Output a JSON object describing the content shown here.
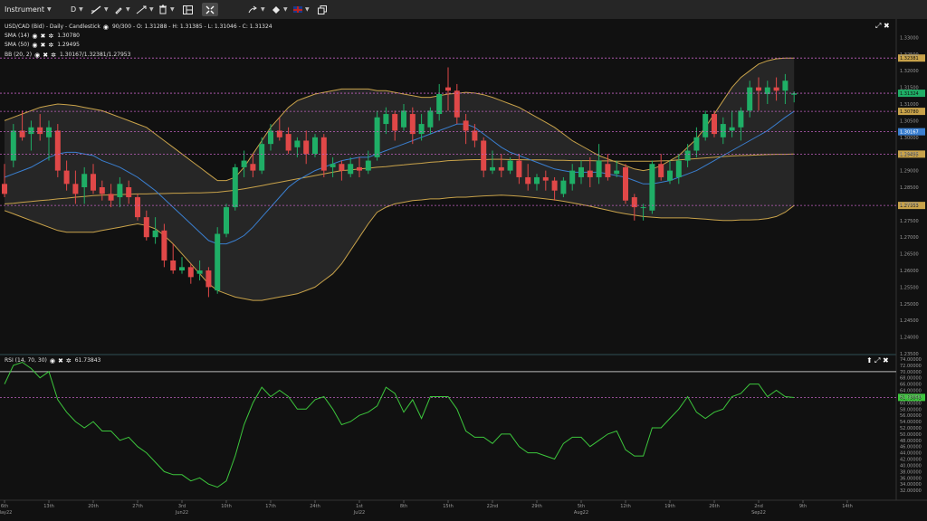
{
  "toolbar": {
    "instrument_label": "Instrument",
    "timeframe_label": "D",
    "icons": [
      "line-tool-icon",
      "pencil-icon",
      "arrows-icon",
      "delete-icon",
      "layout-icon",
      "grid-icon",
      "arrow-icon",
      "paint-icon",
      "language-flag-icon",
      "copy-icon"
    ]
  },
  "main_legend": {
    "title": "USD/CAD (Bid) - Daily - Candlestick",
    "ohlc": "90/300 - O: 1.31288 - H: 1.31385 - L: 1.31046 - C: 1.31324",
    "sma14_label": "SMA (14)",
    "sma14_value": "1.30780",
    "sma50_label": "SMA (50)",
    "sma50_value": "1.29495",
    "bb_label": "BB (20, 2)",
    "bb_value": "1.30167/1.32381/1.27953"
  },
  "rsi_legend": {
    "label": "RSI (14, 70, 30)",
    "value": "61.73843"
  },
  "colors": {
    "background": "#111111",
    "bull": "#1fae66",
    "bear": "#e04848",
    "sma14": "#3a7fd0",
    "sma50": "#c8a24a",
    "bollinger": "#c8a24a",
    "rsi": "#3cc63c",
    "level_line": "#c060c0",
    "grid": "#2a2a2a"
  },
  "chart_data": [
    {
      "type": "candlestick",
      "title": "USD/CAD (Bid) - Daily - Candlestick",
      "ylim": [
        1.235,
        1.335
      ],
      "y_ticks": [
        "1.33000",
        "1.32500",
        "1.32000",
        "1.31500",
        "1.31000",
        "1.30500",
        "1.30000",
        "1.29500",
        "1.29000",
        "1.28500",
        "1.28000",
        "1.27500",
        "1.27000",
        "1.26500",
        "1.26000",
        "1.25500",
        "1.25000",
        "1.24500",
        "1.24000",
        "1.23500"
      ],
      "x_ticks": [
        {
          "label": "6th",
          "sub": "May22",
          "i": 0
        },
        {
          "label": "13th",
          "i": 5
        },
        {
          "label": "20th",
          "i": 10
        },
        {
          "label": "27th",
          "i": 15
        },
        {
          "label": "3rd",
          "sub": "Jun22",
          "i": 20
        },
        {
          "label": "10th",
          "i": 25
        },
        {
          "label": "17th",
          "i": 30
        },
        {
          "label": "24th",
          "i": 35
        },
        {
          "label": "1st",
          "sub": "Jul22",
          "i": 40
        },
        {
          "label": "8th",
          "i": 45
        },
        {
          "label": "15th",
          "i": 50
        },
        {
          "label": "22nd",
          "i": 55
        },
        {
          "label": "29th",
          "i": 60
        },
        {
          "label": "5th",
          "sub": "Aug22",
          "i": 65
        },
        {
          "label": "12th",
          "i": 70
        },
        {
          "label": "19th",
          "i": 75
        },
        {
          "label": "26th",
          "i": 80
        },
        {
          "label": "2nd",
          "sub": "Sep22",
          "i": 85
        },
        {
          "label": "9th",
          "i": 90
        },
        {
          "label": "14th",
          "i": 95
        }
      ],
      "level_labels": [
        {
          "value": 1.32381,
          "text": "1.32381",
          "color": "#c8a24a"
        },
        {
          "value": 1.31324,
          "text": "1.31324",
          "color": "#1fae66"
        },
        {
          "value": 1.3078,
          "text": "1.30780",
          "color": "#c8a24a"
        },
        {
          "value": 1.30167,
          "text": "1.30167",
          "color": "#3a7fd0"
        },
        {
          "value": 1.29495,
          "text": "1.29495",
          "color": "#c8a24a"
        },
        {
          "value": 1.27953,
          "text": "1.27953",
          "color": "#c8a24a"
        }
      ],
      "candles": [
        [
          1.286,
          1.292,
          1.282,
          1.283
        ],
        [
          1.293,
          1.304,
          1.291,
          1.302
        ],
        [
          1.302,
          1.308,
          1.299,
          1.3
        ],
        [
          1.301,
          1.305,
          1.296,
          1.303
        ],
        [
          1.303,
          1.307,
          1.299,
          1.301
        ],
        [
          1.3,
          1.305,
          1.293,
          1.303
        ],
        [
          1.302,
          1.304,
          1.288,
          1.29
        ],
        [
          1.29,
          1.293,
          1.284,
          1.286
        ],
        [
          1.286,
          1.29,
          1.28,
          1.283
        ],
        [
          1.285,
          1.291,
          1.28,
          1.289
        ],
        [
          1.289,
          1.292,
          1.283,
          1.284
        ],
        [
          1.285,
          1.287,
          1.281,
          1.283
        ],
        [
          1.283,
          1.286,
          1.279,
          1.281
        ],
        [
          1.282,
          1.288,
          1.279,
          1.286
        ],
        [
          1.285,
          1.287,
          1.28,
          1.282
        ],
        [
          1.282,
          1.283,
          1.275,
          1.276
        ],
        [
          1.276,
          1.278,
          1.269,
          1.27
        ],
        [
          1.27,
          1.276,
          1.268,
          1.272
        ],
        [
          1.272,
          1.274,
          1.261,
          1.263
        ],
        [
          1.263,
          1.268,
          1.259,
          1.26
        ],
        [
          1.26,
          1.264,
          1.259,
          1.261
        ],
        [
          1.261,
          1.262,
          1.256,
          1.258
        ],
        [
          1.259,
          1.263,
          1.257,
          1.26
        ],
        [
          1.26,
          1.261,
          1.252,
          1.255
        ],
        [
          1.254,
          1.273,
          1.253,
          1.271
        ],
        [
          1.271,
          1.28,
          1.27,
          1.279
        ],
        [
          1.279,
          1.292,
          1.278,
          1.291
        ],
        [
          1.291,
          1.296,
          1.288,
          1.293
        ],
        [
          1.292,
          1.295,
          1.288,
          1.29
        ],
        [
          1.29,
          1.3,
          1.289,
          1.298
        ],
        [
          1.298,
          1.304,
          1.296,
          1.302
        ],
        [
          1.302,
          1.306,
          1.299,
          1.3
        ],
        [
          1.301,
          1.303,
          1.295,
          1.296
        ],
        [
          1.297,
          1.3,
          1.294,
          1.299
        ],
        [
          1.299,
          1.302,
          1.292,
          1.295
        ],
        [
          1.295,
          1.301,
          1.294,
          1.3
        ],
        [
          1.3,
          1.301,
          1.288,
          1.29
        ],
        [
          1.291,
          1.294,
          1.288,
          1.292
        ],
        [
          1.292,
          1.293,
          1.287,
          1.29
        ],
        [
          1.289,
          1.294,
          1.288,
          1.292
        ],
        [
          1.291,
          1.294,
          1.288,
          1.29
        ],
        [
          1.29,
          1.296,
          1.289,
          1.293
        ],
        [
          1.294,
          1.308,
          1.293,
          1.306
        ],
        [
          1.304,
          1.309,
          1.301,
          1.307
        ],
        [
          1.307,
          1.308,
          1.299,
          1.302
        ],
        [
          1.303,
          1.31,
          1.302,
          1.308
        ],
        [
          1.307,
          1.309,
          1.298,
          1.301
        ],
        [
          1.301,
          1.307,
          1.299,
          1.304
        ],
        [
          1.303,
          1.309,
          1.301,
          1.308
        ],
        [
          1.307,
          1.316,
          1.305,
          1.313
        ],
        [
          1.315,
          1.321,
          1.308,
          1.314
        ],
        [
          1.314,
          1.316,
          1.304,
          1.306
        ],
        [
          1.305,
          1.307,
          1.298,
          1.302
        ],
        [
          1.302,
          1.304,
          1.297,
          1.299
        ],
        [
          1.299,
          1.3,
          1.288,
          1.29
        ],
        [
          1.29,
          1.296,
          1.289,
          1.291
        ],
        [
          1.291,
          1.295,
          1.288,
          1.29
        ],
        [
          1.29,
          1.294,
          1.289,
          1.293
        ],
        [
          1.293,
          1.295,
          1.286,
          1.288
        ],
        [
          1.288,
          1.292,
          1.284,
          1.286
        ],
        [
          1.286,
          1.289,
          1.284,
          1.288
        ],
        [
          1.288,
          1.29,
          1.284,
          1.287
        ],
        [
          1.287,
          1.288,
          1.281,
          1.284
        ],
        [
          1.283,
          1.288,
          1.282,
          1.287
        ],
        [
          1.286,
          1.292,
          1.284,
          1.29
        ],
        [
          1.288,
          1.293,
          1.286,
          1.291
        ],
        [
          1.29,
          1.294,
          1.285,
          1.288
        ],
        [
          1.288,
          1.298,
          1.286,
          1.293
        ],
        [
          1.292,
          1.295,
          1.287,
          1.288
        ],
        [
          1.289,
          1.293,
          1.288,
          1.29
        ],
        [
          1.291,
          1.292,
          1.28,
          1.281
        ],
        [
          1.282,
          1.283,
          1.275,
          1.279
        ],
        [
          1.279,
          1.28,
          1.275,
          1.279
        ],
        [
          1.278,
          1.293,
          1.277,
          1.292
        ],
        [
          1.292,
          1.295,
          1.287,
          1.288
        ],
        [
          1.287,
          1.293,
          1.286,
          1.29
        ],
        [
          1.288,
          1.295,
          1.286,
          1.293
        ],
        [
          1.293,
          1.298,
          1.291,
          1.296
        ],
        [
          1.296,
          1.303,
          1.294,
          1.3
        ],
        [
          1.3,
          1.308,
          1.299,
          1.307
        ],
        [
          1.307,
          1.308,
          1.3,
          1.301
        ],
        [
          1.3,
          1.306,
          1.298,
          1.304
        ],
        [
          1.302,
          1.308,
          1.3,
          1.303
        ],
        [
          1.303,
          1.309,
          1.299,
          1.308
        ],
        [
          1.308,
          1.317,
          1.306,
          1.315
        ],
        [
          1.315,
          1.318,
          1.308,
          1.314
        ],
        [
          1.313,
          1.317,
          1.31,
          1.315
        ],
        [
          1.315,
          1.318,
          1.311,
          1.314
        ],
        [
          1.314,
          1.319,
          1.31,
          1.317
        ],
        [
          1.3128,
          1.3138,
          1.3105,
          1.3132
        ]
      ],
      "sma14": [
        1.288,
        1.289,
        1.29,
        1.291,
        1.2925,
        1.294,
        1.295,
        1.2955,
        1.2955,
        1.295,
        1.2945,
        1.293,
        1.292,
        1.291,
        1.2895,
        1.288,
        1.286,
        1.284,
        1.2815,
        1.279,
        1.2765,
        1.274,
        1.2715,
        1.269,
        1.268,
        1.268,
        1.269,
        1.2705,
        1.273,
        1.276,
        1.279,
        1.282,
        1.285,
        1.287,
        1.2885,
        1.29,
        1.291,
        1.292,
        1.293,
        1.2935,
        1.294,
        1.294,
        1.295,
        1.296,
        1.297,
        1.298,
        1.299,
        1.3,
        1.301,
        1.302,
        1.303,
        1.304,
        1.304,
        1.303,
        1.301,
        1.299,
        1.297,
        1.2955,
        1.2945,
        1.2935,
        1.2925,
        1.2915,
        1.2905,
        1.29,
        1.2895,
        1.2895,
        1.2895,
        1.2895,
        1.289,
        1.2885,
        1.288,
        1.287,
        1.286,
        1.286,
        1.2865,
        1.287,
        1.288,
        1.289,
        1.29,
        1.2915,
        1.293,
        1.2945,
        1.296,
        1.2975,
        1.299,
        1.3005,
        1.302,
        1.304,
        1.306,
        1.3078
      ],
      "sma50": [
        1.28,
        1.2802,
        1.2805,
        1.2807,
        1.281,
        1.2812,
        1.2815,
        1.2817,
        1.282,
        1.2822,
        1.2825,
        1.2826,
        1.2827,
        1.2828,
        1.2829,
        1.283,
        1.283,
        1.2831,
        1.2831,
        1.2832,
        1.2832,
        1.2833,
        1.2833,
        1.2834,
        1.2835,
        1.2838,
        1.2841,
        1.2845,
        1.285,
        1.2855,
        1.286,
        1.2865,
        1.287,
        1.2875,
        1.288,
        1.2885,
        1.289,
        1.2895,
        1.29,
        1.2902,
        1.2905,
        1.2907,
        1.291,
        1.2912,
        1.2915,
        1.2917,
        1.292,
        1.2922,
        1.2925,
        1.2927,
        1.293,
        1.2931,
        1.2932,
        1.2933,
        1.2933,
        1.2934,
        1.2934,
        1.2933,
        1.2933,
        1.2932,
        1.2932,
        1.2932,
        1.2931,
        1.2931,
        1.293,
        1.293,
        1.293,
        1.2929,
        1.2929,
        1.2928,
        1.2928,
        1.2928,
        1.2928,
        1.2928,
        1.2929,
        1.293,
        1.2932,
        1.2934,
        1.2936,
        1.2938,
        1.294,
        1.2942,
        1.2944,
        1.2945,
        1.2946,
        1.2947,
        1.2948,
        1.2949,
        1.2949,
        1.295
      ],
      "bb_upper": [
        1.305,
        1.306,
        1.307,
        1.308,
        1.309,
        1.3095,
        1.31,
        1.3098,
        1.3095,
        1.309,
        1.3085,
        1.308,
        1.307,
        1.306,
        1.305,
        1.304,
        1.303,
        1.301,
        1.299,
        1.297,
        1.295,
        1.293,
        1.291,
        1.289,
        1.287,
        1.287,
        1.288,
        1.291,
        1.295,
        1.299,
        1.303,
        1.306,
        1.309,
        1.311,
        1.312,
        1.313,
        1.3135,
        1.314,
        1.3145,
        1.3145,
        1.3145,
        1.3145,
        1.314,
        1.314,
        1.3135,
        1.313,
        1.3125,
        1.312,
        1.312,
        1.3125,
        1.313,
        1.3132,
        1.3135,
        1.3133,
        1.3128,
        1.312,
        1.311,
        1.31,
        1.309,
        1.3075,
        1.306,
        1.3045,
        1.303,
        1.301,
        1.299,
        1.2975,
        1.296,
        1.2945,
        1.2935,
        1.2925,
        1.2915,
        1.2905,
        1.29,
        1.2905,
        1.2915,
        1.293,
        1.2945,
        1.297,
        1.2995,
        1.303,
        1.307,
        1.311,
        1.315,
        1.318,
        1.32,
        1.322,
        1.323,
        1.3236,
        1.3238,
        1.3238
      ],
      "bb_lower": [
        1.278,
        1.277,
        1.276,
        1.275,
        1.274,
        1.273,
        1.272,
        1.2715,
        1.2715,
        1.2715,
        1.2715,
        1.272,
        1.2725,
        1.273,
        1.2735,
        1.274,
        1.2735,
        1.2725,
        1.2705,
        1.268,
        1.265,
        1.262,
        1.259,
        1.256,
        1.254,
        1.253,
        1.252,
        1.2515,
        1.251,
        1.251,
        1.2515,
        1.252,
        1.2525,
        1.253,
        1.254,
        1.255,
        1.257,
        1.259,
        1.262,
        1.266,
        1.27,
        1.274,
        1.2775,
        1.279,
        1.28,
        1.2805,
        1.281,
        1.2812,
        1.2815,
        1.2815,
        1.2818,
        1.282,
        1.282,
        1.2822,
        1.2824,
        1.2825,
        1.2826,
        1.2825,
        1.2823,
        1.2821,
        1.2818,
        1.2815,
        1.2812,
        1.2808,
        1.2803,
        1.2798,
        1.2793,
        1.2787,
        1.2781,
        1.2775,
        1.277,
        1.2766,
        1.2762,
        1.276,
        1.2758,
        1.2758,
        1.2758,
        1.2758,
        1.2756,
        1.2754,
        1.2752,
        1.275,
        1.275,
        1.2752,
        1.2752,
        1.2753,
        1.2756,
        1.2762,
        1.2775,
        1.2795
      ]
    },
    {
      "type": "line",
      "title": "RSI (14, 70, 30)",
      "ylim": [
        30,
        74
      ],
      "y_ticks": [
        "74.00000",
        "72.00000",
        "70.00000",
        "68.00000",
        "66.00000",
        "64.00000",
        "62.00000",
        "60.00000",
        "58.00000",
        "56.00000",
        "54.00000",
        "52.00000",
        "50.00000",
        "48.00000",
        "46.00000",
        "44.00000",
        "42.00000",
        "40.00000",
        "38.00000",
        "36.00000",
        "34.00000",
        "32.00000"
      ],
      "overbought": 70,
      "value_label": {
        "value": 61.73843,
        "text": "61.73843"
      },
      "series": [
        {
          "values": [
            66,
            72,
            73,
            71,
            68,
            70,
            61,
            57,
            54,
            52,
            54,
            51,
            51,
            48,
            49,
            46,
            44,
            41,
            38,
            37,
            37,
            35,
            36,
            34,
            33,
            35,
            43,
            53,
            60,
            65,
            62,
            64,
            62,
            58,
            58,
            61,
            62,
            58,
            53,
            54,
            56,
            57,
            59,
            65,
            63,
            57,
            61,
            55,
            62,
            62,
            62,
            58,
            51,
            49,
            49,
            47,
            50,
            50,
            46,
            44,
            44,
            43,
            42,
            47,
            49,
            49,
            46,
            48,
            50,
            51,
            45,
            43,
            43,
            52,
            52,
            55,
            58,
            62,
            57,
            55,
            57,
            58,
            62,
            63,
            66,
            66,
            62,
            64,
            62,
            61.7
          ]
        }
      ]
    }
  ]
}
